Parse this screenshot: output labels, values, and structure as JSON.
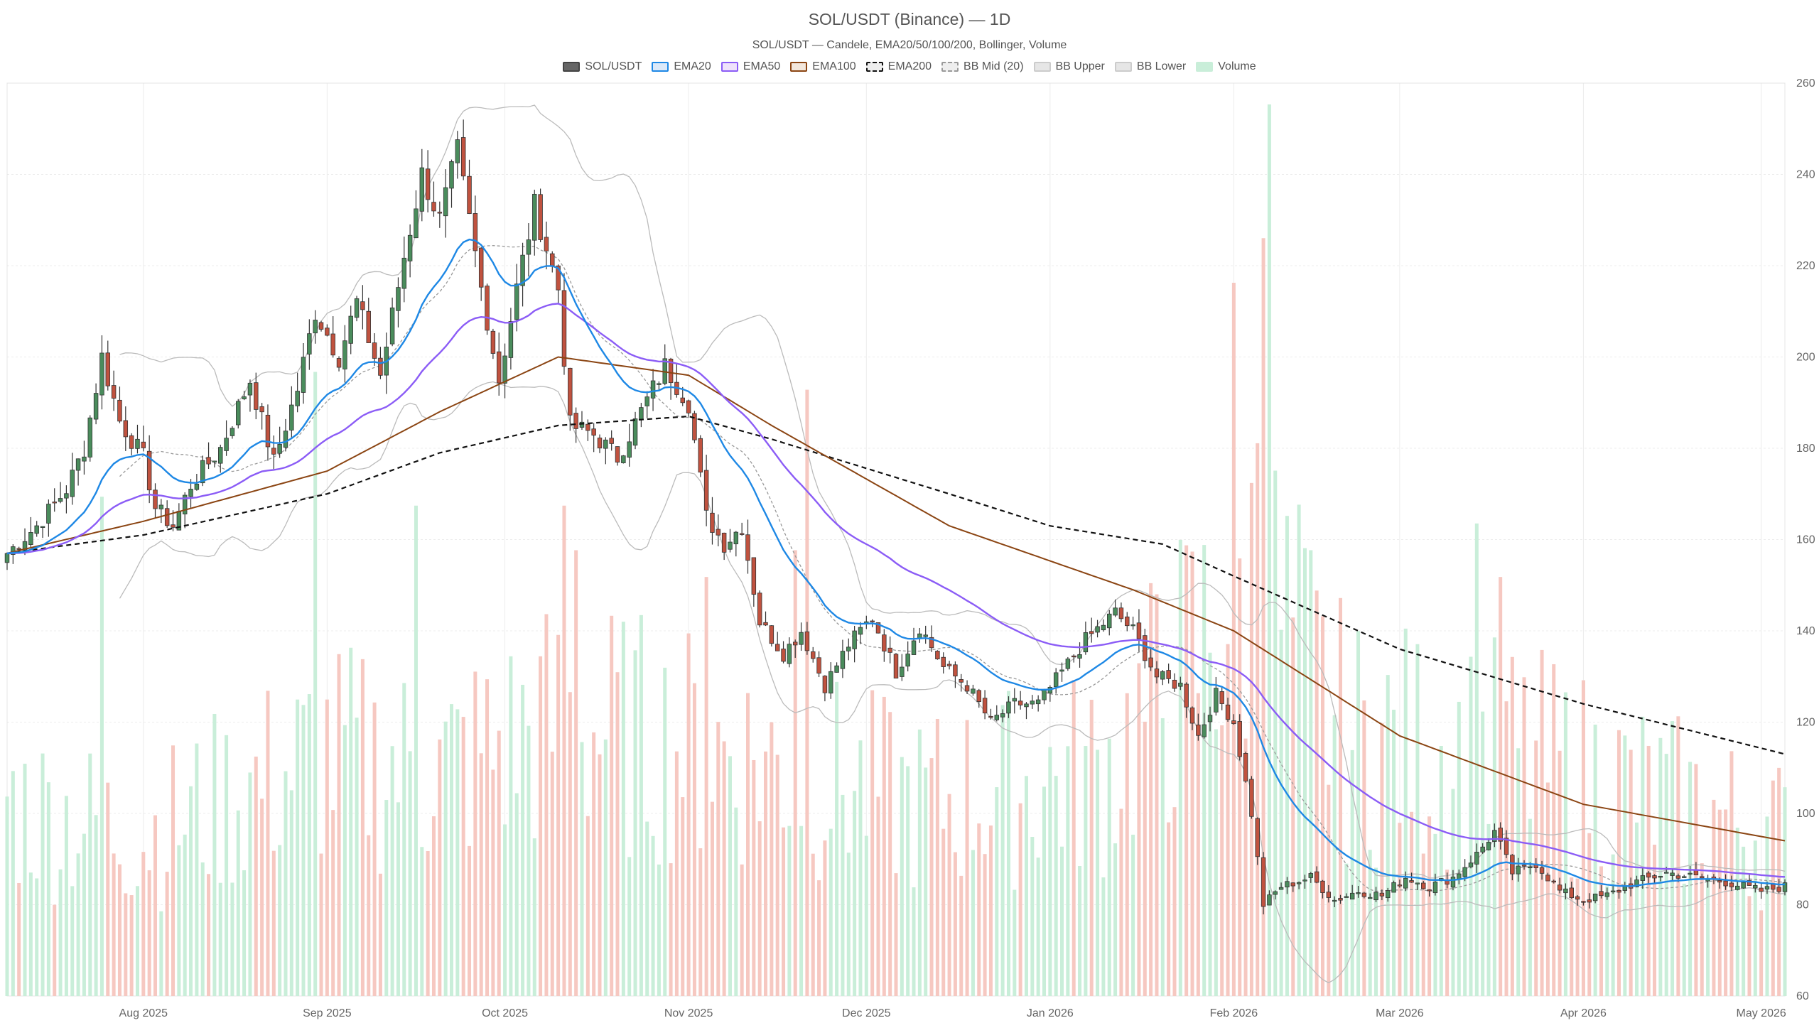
{
  "chart_data": {
    "type": "candlestick",
    "title": "SOL/USDT (Binance) — 1D",
    "subtitle": "SOL/USDT — Candele, EMA20/50/100/200, Bollinger, Volume",
    "legend": [
      {
        "label": "SOL/USDT",
        "fill": "#666666",
        "border": "#444444",
        "dash": false
      },
      {
        "label": "EMA20",
        "fill": "#dbe9f9",
        "border": "#1e88e5",
        "dash": false
      },
      {
        "label": "EMA50",
        "fill": "#efe2fb",
        "border": "#8b5cf6",
        "dash": false
      },
      {
        "label": "EMA100",
        "fill": "#f3e7dc",
        "border": "#8b4513",
        "dash": false
      },
      {
        "label": "EMA200",
        "fill": "#eeeeee",
        "border": "#111111",
        "dash": true
      },
      {
        "label": "BB Mid (20)",
        "fill": "#eeeeee",
        "border": "#999999",
        "dash": true
      },
      {
        "label": "BB Upper",
        "fill": "#e6e6e6",
        "border": "#cccccc",
        "dash": false
      },
      {
        "label": "BB Lower",
        "fill": "#e6e6e6",
        "border": "#cccccc",
        "dash": false
      },
      {
        "label": "Volume",
        "fill": "#c9eed9",
        "border": "#c9eed9",
        "dash": false
      }
    ],
    "colors": {
      "up": "#4a8c5c",
      "down": "#c0523f",
      "vol_up": "#c9eed9",
      "vol_down": "#f6c8c1",
      "ema20": "#1e88e5",
      "ema50": "#8b5cf6",
      "ema100": "#8b4513",
      "ema200": "#111111",
      "bb_mid": "#999999",
      "bb_band": "#bbbbbb"
    },
    "x_range": [
      "2025-07-09",
      "2026-05-05"
    ],
    "x_ticks": [
      "Aug 2025",
      "Sep 2025",
      "Oct 2025",
      "Nov 2025",
      "Dec 2025",
      "Jan 2026",
      "Feb 2026",
      "Mar 2026",
      "Apr 2026",
      "May 2026"
    ],
    "x_tick_dates": [
      "2025-08-01",
      "2025-09-01",
      "2025-10-01",
      "2025-11-01",
      "2025-12-01",
      "2026-01-01",
      "2026-02-01",
      "2026-03-01",
      "2026-04-01",
      "2026-05-01"
    ],
    "y_axis": {
      "position": "right",
      "ylim": [
        60,
        260
      ],
      "ticks": [
        60,
        80,
        100,
        120,
        140,
        160,
        180,
        200,
        220,
        240,
        260
      ]
    },
    "grid": true,
    "close_keypoints": [
      [
        "2025-07-09",
        157
      ],
      [
        "2025-07-14",
        163
      ],
      [
        "2025-07-19",
        171
      ],
      [
        "2025-07-22",
        180
      ],
      [
        "2025-07-25",
        200
      ],
      [
        "2025-07-28",
        186
      ],
      [
        "2025-08-01",
        178
      ],
      [
        "2025-08-03",
        167
      ],
      [
        "2025-08-06",
        163
      ],
      [
        "2025-08-09",
        172
      ],
      [
        "2025-08-14",
        180
      ],
      [
        "2025-08-19",
        195
      ],
      [
        "2025-08-23",
        177
      ],
      [
        "2025-08-27",
        193
      ],
      [
        "2025-08-30",
        210
      ],
      [
        "2025-09-03",
        200
      ],
      [
        "2025-09-06",
        212
      ],
      [
        "2025-09-10",
        196
      ],
      [
        "2025-09-14",
        222
      ],
      [
        "2025-09-17",
        240
      ],
      [
        "2025-09-20",
        230
      ],
      [
        "2025-09-23",
        245
      ],
      [
        "2025-09-27",
        215
      ],
      [
        "2025-09-30",
        195
      ],
      [
        "2025-10-03",
        215
      ],
      [
        "2025-10-06",
        233
      ],
      [
        "2025-10-10",
        215
      ],
      [
        "2025-10-12",
        185
      ],
      [
        "2025-10-16",
        183
      ],
      [
        "2025-10-20",
        178
      ],
      [
        "2025-10-24",
        188
      ],
      [
        "2025-10-28",
        198
      ],
      [
        "2025-11-01",
        190
      ],
      [
        "2025-11-04",
        165
      ],
      [
        "2025-11-07",
        159
      ],
      [
        "2025-11-10",
        163
      ],
      [
        "2025-11-13",
        142
      ],
      [
        "2025-11-17",
        135
      ],
      [
        "2025-11-20",
        140
      ],
      [
        "2025-11-24",
        128
      ],
      [
        "2025-11-28",
        137
      ],
      [
        "2025-12-02",
        143
      ],
      [
        "2025-12-06",
        131
      ],
      [
        "2025-12-10",
        141
      ],
      [
        "2025-12-14",
        132
      ],
      [
        "2025-12-18",
        128
      ],
      [
        "2025-12-22",
        120
      ],
      [
        "2025-12-26",
        124
      ],
      [
        "2025-12-30",
        124
      ],
      [
        "2026-01-03",
        131
      ],
      [
        "2026-01-07",
        138
      ],
      [
        "2026-01-12",
        144
      ],
      [
        "2026-01-15",
        140
      ],
      [
        "2026-01-19",
        130
      ],
      [
        "2026-01-23",
        128
      ],
      [
        "2026-01-26",
        117
      ],
      [
        "2026-01-29",
        126
      ],
      [
        "2026-02-01",
        120
      ],
      [
        "2026-02-04",
        100
      ],
      [
        "2026-02-06",
        80
      ],
      [
        "2026-02-09",
        84
      ],
      [
        "2026-02-14",
        86
      ],
      [
        "2026-02-18",
        81
      ],
      [
        "2026-02-22",
        83
      ],
      [
        "2026-02-26",
        82
      ],
      [
        "2026-03-02",
        86
      ],
      [
        "2026-03-06",
        84
      ],
      [
        "2026-03-10",
        86
      ],
      [
        "2026-03-14",
        91
      ],
      [
        "2026-03-17",
        96
      ],
      [
        "2026-03-20",
        87
      ],
      [
        "2026-03-24",
        89
      ],
      [
        "2026-03-28",
        83
      ],
      [
        "2026-04-01",
        81
      ],
      [
        "2026-04-05",
        82
      ],
      [
        "2026-04-10",
        85
      ],
      [
        "2026-04-15",
        87
      ],
      [
        "2026-04-20",
        86
      ],
      [
        "2026-04-25",
        85
      ],
      [
        "2026-05-01",
        83
      ],
      [
        "2026-05-05",
        84
      ]
    ],
    "ema200_keypoints": [
      [
        "2025-07-09",
        157
      ],
      [
        "2025-08-01",
        161
      ],
      [
        "2025-09-01",
        170
      ],
      [
        "2025-09-20",
        179
      ],
      [
        "2025-10-10",
        185
      ],
      [
        "2025-11-01",
        187
      ],
      [
        "2025-11-15",
        182
      ],
      [
        "2025-12-15",
        170
      ],
      [
        "2026-01-01",
        163
      ],
      [
        "2026-01-20",
        159
      ],
      [
        "2026-02-01",
        152
      ],
      [
        "2026-03-01",
        136
      ],
      [
        "2026-04-01",
        124
      ],
      [
        "2026-05-05",
        113
      ]
    ],
    "ema100_keypoints": [
      [
        "2025-07-09",
        157
      ],
      [
        "2025-08-01",
        164
      ],
      [
        "2025-09-01",
        175
      ],
      [
        "2025-09-20",
        188
      ],
      [
        "2025-10-10",
        200
      ],
      [
        "2025-11-01",
        196
      ],
      [
        "2025-11-15",
        185
      ],
      [
        "2025-12-15",
        163
      ],
      [
        "2026-01-15",
        149
      ],
      [
        "2026-02-01",
        140
      ],
      [
        "2026-03-01",
        117
      ],
      [
        "2026-04-01",
        102
      ],
      [
        "2026-05-05",
        94
      ]
    ],
    "volume_keypoints": [
      [
        "2025-07-09",
        0.24
      ],
      [
        "2025-08-01",
        0.2
      ],
      [
        "2025-09-01",
        0.3
      ],
      [
        "2025-09-20",
        0.28
      ],
      [
        "2025-10-10",
        0.34
      ],
      [
        "2025-11-10",
        0.3
      ],
      [
        "2025-12-10",
        0.24
      ],
      [
        "2026-01-10",
        0.28
      ],
      [
        "2026-02-05",
        0.52
      ],
      [
        "2026-02-20",
        0.32
      ],
      [
        "2026-03-20",
        0.3
      ],
      [
        "2026-05-05",
        0.2
      ]
    ],
    "volume_spikes": [
      [
        "2025-07-25",
        0.56
      ],
      [
        "2025-08-30",
        0.7
      ],
      [
        "2025-09-16",
        0.55
      ],
      [
        "2025-10-11",
        0.55
      ],
      [
        "2025-10-13",
        0.5
      ],
      [
        "2025-11-04",
        0.47
      ],
      [
        "2025-11-19",
        0.5
      ],
      [
        "2025-11-21",
        0.68
      ],
      [
        "2026-02-01",
        0.8
      ],
      [
        "2026-02-05",
        0.62
      ],
      [
        "2026-02-06",
        0.85
      ],
      [
        "2026-02-07",
        1.0
      ],
      [
        "2026-03-14",
        0.53
      ],
      [
        "2026-03-18",
        0.47
      ]
    ]
  }
}
